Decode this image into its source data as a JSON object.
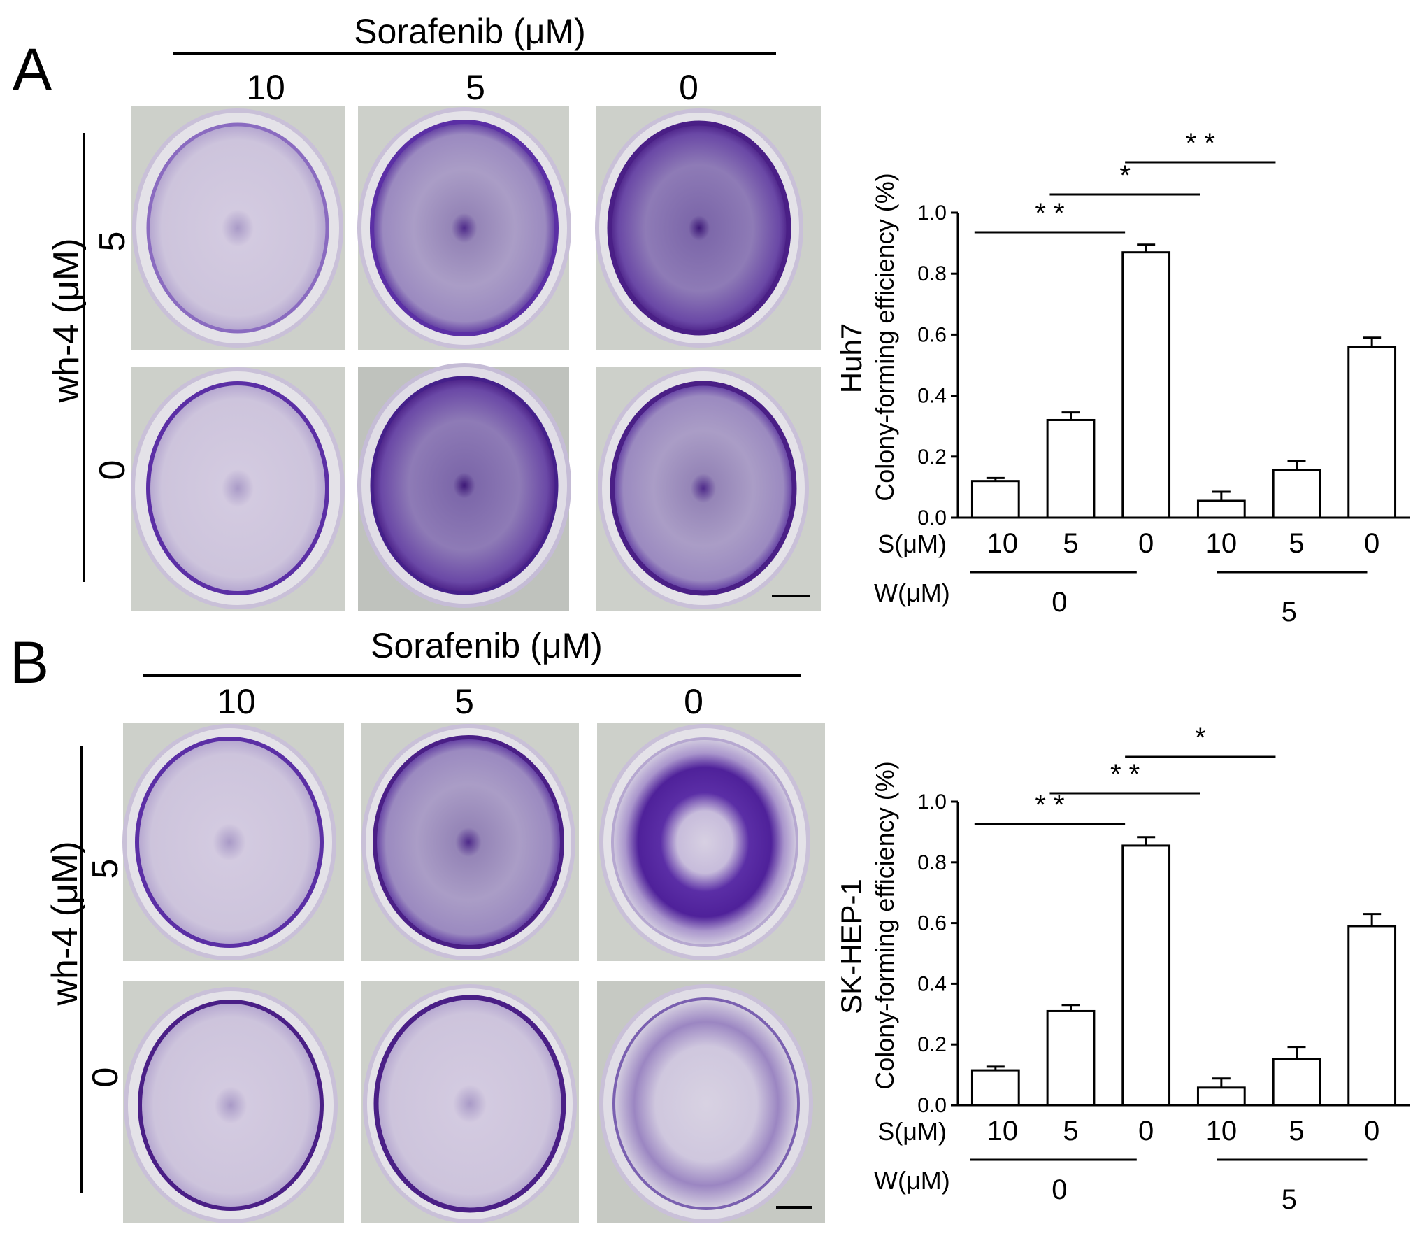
{
  "panels": [
    {
      "letter": "A",
      "drug_header": "Sorafenib (μM)",
      "col_labels": [
        "10",
        "5",
        "0"
      ],
      "row_header": "wh-4 (μM)",
      "row_labels": [
        "5",
        "0"
      ],
      "chart_data": {
        "type": "bar",
        "cell_line": "Huh7",
        "ylabel": "Colony-forming efficiency (%)",
        "ylim": [
          0,
          1.0
        ],
        "yticks": [
          "0.0",
          "0.2",
          "0.4",
          "0.6",
          "0.8",
          "1.0"
        ],
        "categories": [
          "10",
          "5",
          "0",
          "10",
          "5",
          "0"
        ],
        "values": [
          0.12,
          0.32,
          0.87,
          0.055,
          0.155,
          0.56
        ],
        "errors": [
          0.01,
          0.025,
          0.025,
          0.03,
          0.03,
          0.03
        ],
        "s_label": "S(μM)",
        "w_label": "W(μM)",
        "w_groups": [
          "0",
          "5"
        ],
        "significance": [
          "* *",
          "*",
          "* *"
        ]
      }
    },
    {
      "letter": "B",
      "drug_header": "Sorafenib (μM)",
      "col_labels": [
        "10",
        "5",
        "0"
      ],
      "row_header": "wh-4 (μM)",
      "row_labels": [
        "5",
        "0"
      ],
      "chart_data": {
        "type": "bar",
        "cell_line": "SK-HEP-1",
        "ylabel": "Colony-forming efficiency (%)",
        "ylim": [
          0,
          1.0
        ],
        "yticks": [
          "0.0",
          "0.2",
          "0.4",
          "0.6",
          "0.8",
          "1.0"
        ],
        "categories": [
          "10",
          "5",
          "0",
          "10",
          "5",
          "0"
        ],
        "values": [
          0.115,
          0.31,
          0.855,
          0.058,
          0.152,
          0.59
        ],
        "errors": [
          0.012,
          0.02,
          0.028,
          0.03,
          0.04,
          0.04
        ],
        "s_label": "S(μM)",
        "w_label": "W(μM)",
        "w_groups": [
          "0",
          "5"
        ],
        "significance": [
          "* *",
          "* *",
          "*"
        ]
      }
    }
  ],
  "colors": {
    "plate_background": "#cfd2cc",
    "dish_fill": "#d9d3e2",
    "stain": "#4a1f86",
    "bar_fill": "#ffffff",
    "axis": "#000000"
  }
}
